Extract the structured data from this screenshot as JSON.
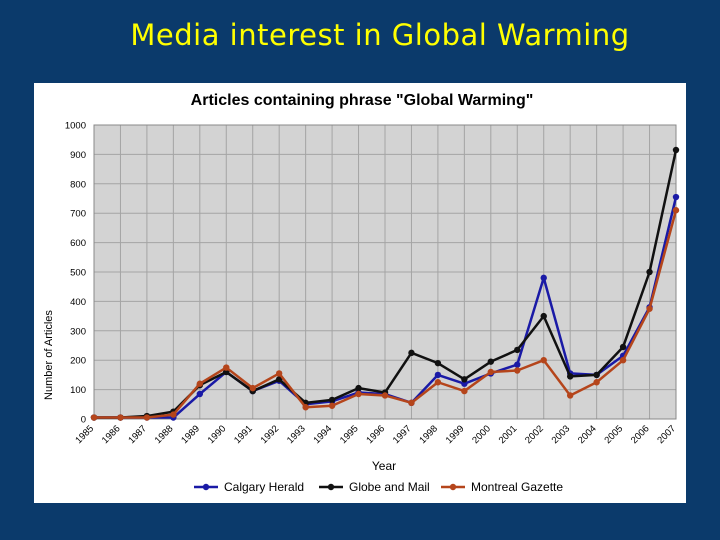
{
  "slide": {
    "title": "Media interest in Global Warming"
  },
  "chart_data": {
    "type": "line",
    "title": "Articles containing phrase \"Global Warming\"",
    "xlabel": "Year",
    "ylabel": "Number of Articles",
    "ylim": [
      0,
      1000
    ],
    "yticks": [
      0,
      100,
      200,
      300,
      400,
      500,
      600,
      700,
      800,
      900,
      1000
    ],
    "grid": true,
    "legend_position": "bottom",
    "categories": [
      "1985",
      "1986",
      "1987",
      "1988",
      "1989",
      "1990",
      "1991",
      "1992",
      "1993",
      "1994",
      "1995",
      "1996",
      "1997",
      "1998",
      "1999",
      "2000",
      "2001",
      "2002",
      "2003",
      "2004",
      "2005",
      "2006",
      "2007"
    ],
    "series": [
      {
        "name": "Calgary Herald",
        "color": "#1a1aa6",
        "values": [
          5,
          5,
          5,
          5,
          85,
          160,
          95,
          130,
          50,
          60,
          90,
          85,
          55,
          150,
          120,
          155,
          185,
          480,
          155,
          150,
          215,
          380,
          755
        ]
      },
      {
        "name": "Globe and Mail",
        "color": "#111111",
        "values": [
          5,
          5,
          10,
          25,
          115,
          160,
          95,
          135,
          55,
          65,
          105,
          90,
          225,
          190,
          135,
          195,
          235,
          350,
          145,
          150,
          245,
          500,
          915
        ]
      },
      {
        "name": "Montreal Gazette",
        "color": "#b5451b",
        "values": [
          5,
          5,
          5,
          15,
          120,
          175,
          105,
          155,
          40,
          45,
          85,
          80,
          55,
          125,
          95,
          160,
          165,
          200,
          80,
          125,
          200,
          375,
          710
        ]
      }
    ]
  }
}
